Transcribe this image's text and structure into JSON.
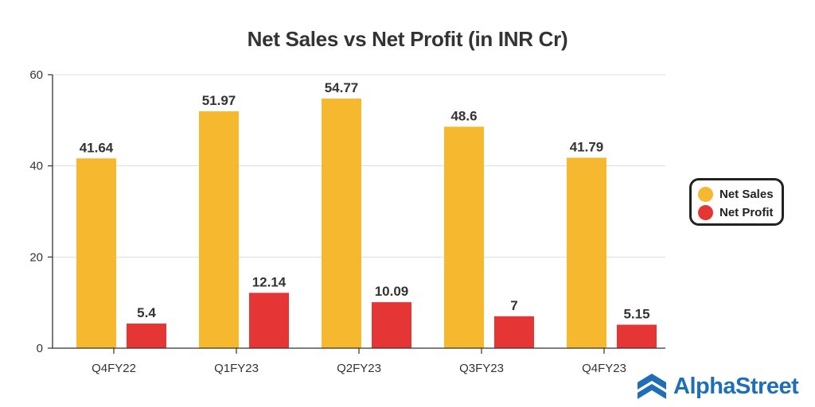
{
  "chart_data": {
    "type": "bar",
    "title": "Net Sales vs Net Profit (in INR Cr)",
    "xlabel": "",
    "ylabel": "",
    "categories": [
      "Q4FY22",
      "Q1FY23",
      "Q2FY23",
      "Q3FY23",
      "Q4FY23"
    ],
    "series": [
      {
        "name": "Net Sales",
        "values": [
          41.64,
          51.97,
          54.77,
          48.6,
          41.79
        ],
        "labels": [
          "41.64",
          "51.97",
          "54.77",
          "48.6",
          "41.79"
        ],
        "color": "#f5b82e"
      },
      {
        "name": "Net Profit",
        "values": [
          5.4,
          12.14,
          10.09,
          7,
          5.15
        ],
        "labels": [
          "5.4",
          "12.14",
          "10.09",
          "7",
          "5.15"
        ],
        "color": "#e63535"
      }
    ],
    "ylim": [
      0,
      60
    ],
    "yticks": [
      0,
      20,
      40,
      60
    ],
    "grid": true,
    "legend_position": "right"
  },
  "brand": {
    "name": "AlphaStreet",
    "color": "#1e6fb8",
    "icon": "alphastreet-logo-icon"
  }
}
